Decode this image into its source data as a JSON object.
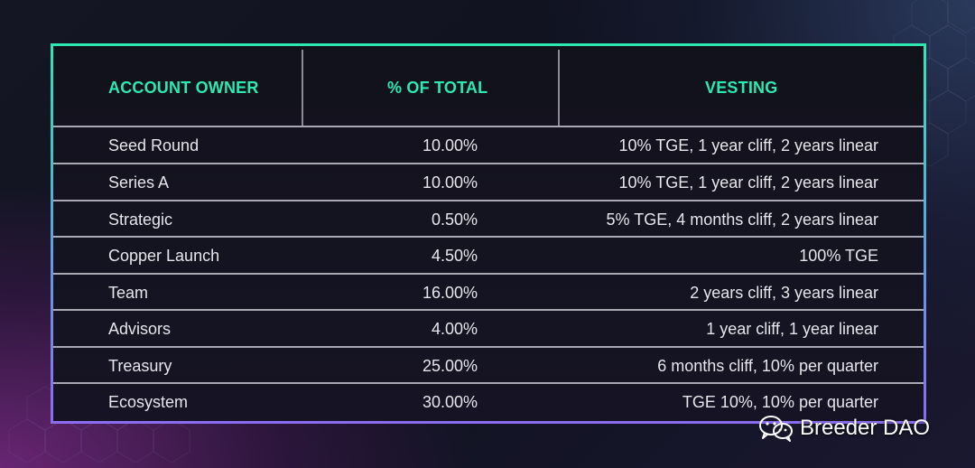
{
  "table": {
    "headers": [
      "ACCOUNT OWNER",
      "% OF TOTAL",
      "VESTING"
    ],
    "rows": [
      {
        "owner": "Seed Round",
        "percent": "10.00%",
        "vesting": "10% TGE, 1 year cliff, 2 years linear"
      },
      {
        "owner": "Series A",
        "percent": "10.00%",
        "vesting": "10% TGE, 1 year cliff, 2 years linear"
      },
      {
        "owner": "Strategic",
        "percent": "0.50%",
        "vesting": "5% TGE, 4 months cliff, 2 years linear"
      },
      {
        "owner": "Copper Launch",
        "percent": "4.50%",
        "vesting": "100% TGE"
      },
      {
        "owner": "Team",
        "percent": "16.00%",
        "vesting": "2 years cliff, 3 years linear"
      },
      {
        "owner": "Advisors",
        "percent": "4.00%",
        "vesting": "1 year cliff, 1 year linear"
      },
      {
        "owner": "Treasury",
        "percent": "25.00%",
        "vesting": "6 months cliff, 10% per quarter"
      },
      {
        "owner": "Ecosystem",
        "percent": "30.00%",
        "vesting": "TGE 10%, 10% per quarter"
      }
    ]
  },
  "watermark": {
    "text": "Breeder DAO",
    "icon": "wechat-icon"
  },
  "colors": {
    "header_text": "#2ee8b2",
    "body_text": "#e6e6ec",
    "frame_gradient": [
      "#2ee8b2",
      "#8a6cf0"
    ]
  }
}
